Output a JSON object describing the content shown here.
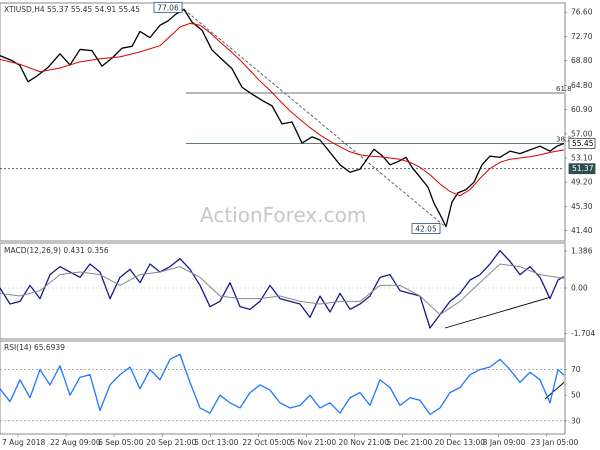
{
  "chart_data": [
    {
      "type": "line",
      "title": "XTIUSD,H4  55.37 55.45 54.91 55.45",
      "watermark": "ActionForex.com",
      "ylim": [
        40.2,
        77.6
      ],
      "y_ticks": [
        "76.60",
        "72.70",
        "68.80",
        "64.80",
        "60.90",
        "57.00",
        "53.10",
        "49.20",
        "45.30",
        "41.40"
      ],
      "x_ticks": [
        "7 Aug 2018",
        "22 Aug 09:00",
        "6 Sep 05:00",
        "20 Sep 21:00",
        "5 Oct 13:00",
        "22 Oct 05:00",
        "5 Nov 21:00",
        "20 Nov 21:00",
        "5 Dec 21:00",
        "20 Dec 13:00",
        "8 Jan 09:00",
        "23 Jan 05:00"
      ],
      "series": [
        {
          "color": "#000000",
          "x": [
            0,
            12,
            20,
            28,
            36,
            48,
            60,
            70,
            80,
            92,
            102,
            112,
            122,
            132,
            140,
            150,
            160,
            168,
            176,
            184,
            192,
            202,
            212,
            222,
            232,
            242,
            252,
            262,
            272,
            282,
            292,
            302,
            312,
            320,
            330,
            340,
            350,
            360,
            366,
            374,
            382,
            390,
            398,
            406,
            412,
            420,
            428,
            434,
            440,
            446,
            452,
            458,
            466,
            474,
            482,
            490,
            500,
            510,
            520,
            530,
            540,
            550,
            557,
            564
          ],
          "y": [
            69.6,
            68.8,
            68.0,
            65.4,
            66.2,
            67.7,
            69.9,
            68.1,
            70.6,
            70.4,
            67.9,
            69.2,
            70.8,
            71.1,
            73.5,
            72.5,
            74.5,
            75.2,
            76.3,
            77.06,
            75.0,
            73.7,
            70.5,
            69.0,
            67.5,
            64.5,
            63.4,
            62.4,
            61.5,
            58.6,
            58.9,
            55.5,
            56.5,
            56.0,
            54.0,
            52.0,
            50.8,
            51.3,
            52.7,
            54.5,
            53.5,
            52.0,
            52.5,
            53.2,
            51.6,
            50.0,
            48.4,
            45.8,
            44.0,
            42.05,
            46.0,
            47.5,
            48.0,
            49.2,
            52.0,
            53.4,
            53.2,
            54.2,
            53.8,
            54.4,
            55.0,
            54.2,
            55.0,
            55.45
          ]
        },
        {
          "color": "#dd0000",
          "x": [
            0,
            20,
            40,
            60,
            80,
            100,
            120,
            140,
            160,
            180,
            190,
            200,
            210,
            220,
            230,
            240,
            250,
            260,
            270,
            280,
            290,
            300,
            310,
            320,
            330,
            340,
            350,
            360,
            370,
            380,
            390,
            400,
            410,
            420,
            430,
            440,
            450,
            460,
            470,
            480,
            490,
            500,
            510,
            520,
            530,
            540,
            550,
            564
          ],
          "y": [
            69.0,
            68.2,
            67.0,
            67.6,
            68.6,
            69.1,
            69.4,
            70.2,
            71.2,
            74.2,
            74.8,
            74.5,
            73.3,
            71.8,
            70.4,
            68.9,
            67.2,
            65.5,
            64.0,
            62.3,
            60.7,
            59.3,
            58.0,
            56.8,
            55.8,
            54.9,
            54.1,
            53.6,
            53.4,
            53.3,
            53.1,
            52.9,
            52.4,
            51.6,
            50.4,
            48.9,
            47.7,
            47.0,
            48.0,
            49.8,
            51.4,
            52.4,
            52.9,
            53.1,
            53.3,
            53.6,
            54.0,
            54.4
          ]
        }
      ],
      "hlines": [
        {
          "value": 63.57,
          "label": "61.8",
          "color": "#2e4e4e"
        },
        {
          "value": 55.45,
          "label": "38.2",
          "color": "#2e4e4e"
        },
        {
          "value": 51.37,
          "label": "",
          "color": "#2e4e4e",
          "dotted": true
        }
      ],
      "trendlines": [
        {
          "x1": 184,
          "y1": 77.06,
          "x2": 445,
          "y2": 42.05,
          "dashed": true,
          "color": "#555555"
        }
      ],
      "value_labels": [
        {
          "text": "77.06",
          "x": 168,
          "value": 77.06
        },
        {
          "text": "42.05",
          "x": 426,
          "value": 42.05
        }
      ],
      "price_tags": [
        {
          "text": "55.45",
          "value": 55.45,
          "bg": "#ffffff",
          "fg": "#000000"
        },
        {
          "text": "51.37",
          "value": 51.37,
          "bg": "#2e4e4e",
          "fg": "#ffffff"
        }
      ]
    },
    {
      "type": "line",
      "title": "MACD(12,26,9) 0.431 0.356",
      "ylim": [
        -1.8,
        1.5
      ],
      "y_ticks": [
        "1.386",
        "0.00",
        "-1.704"
      ],
      "series": [
        {
          "color": "#1a1a8c",
          "x": [
            0,
            10,
            20,
            30,
            40,
            50,
            60,
            70,
            80,
            90,
            100,
            110,
            120,
            130,
            140,
            150,
            160,
            170,
            180,
            190,
            200,
            210,
            220,
            230,
            240,
            250,
            260,
            270,
            280,
            290,
            300,
            310,
            320,
            330,
            340,
            350,
            360,
            370,
            380,
            390,
            400,
            410,
            420,
            430,
            440,
            450,
            460,
            470,
            480,
            490,
            500,
            510,
            520,
            530,
            540,
            550,
            558,
            564
          ],
          "y": [
            0.0,
            -0.6,
            -0.5,
            0.1,
            -0.4,
            0.5,
            0.8,
            0.6,
            0.4,
            0.9,
            0.6,
            -0.4,
            0.4,
            0.7,
            0.2,
            0.9,
            0.6,
            0.8,
            1.1,
            0.7,
            0.1,
            -0.7,
            -0.5,
            0.2,
            -0.7,
            -0.8,
            -0.5,
            0.1,
            -0.4,
            -0.5,
            -0.6,
            -1.1,
            -0.3,
            -0.9,
            -0.2,
            -0.8,
            -0.6,
            -0.3,
            0.4,
            0.5,
            -0.1,
            -0.2,
            -0.3,
            -1.5,
            -1.0,
            -0.5,
            -0.2,
            0.3,
            0.5,
            0.9,
            1.4,
            1.0,
            0.5,
            0.8,
            0.4,
            -0.4,
            0.3,
            0.43
          ]
        },
        {
          "color": "#888888",
          "x": [
            0,
            20,
            40,
            60,
            80,
            100,
            120,
            140,
            160,
            180,
            200,
            220,
            240,
            260,
            280,
            300,
            320,
            340,
            360,
            380,
            400,
            420,
            440,
            460,
            480,
            500,
            520,
            540,
            564
          ],
          "y": [
            -0.2,
            -0.3,
            -0.1,
            0.5,
            0.6,
            0.5,
            0.1,
            0.5,
            0.6,
            0.8,
            0.4,
            -0.3,
            -0.4,
            -0.4,
            -0.3,
            -0.5,
            -0.6,
            -0.5,
            -0.5,
            0.1,
            0.1,
            -0.3,
            -1.0,
            -0.5,
            0.2,
            0.9,
            0.8,
            0.5,
            0.36
          ]
        }
      ],
      "trendlines": [
        {
          "x1": 445,
          "y1": -1.5,
          "x2": 550,
          "y2": -0.35,
          "dashed": false,
          "color": "#000000"
        }
      ],
      "zero_line": true
    },
    {
      "type": "line",
      "title": "RSI(14) 65.6939",
      "ylim": [
        22,
        90
      ],
      "y_ticks": [
        "70",
        "50",
        "30"
      ],
      "series": [
        {
          "color": "#1e78ff",
          "x": [
            0,
            10,
            20,
            30,
            40,
            50,
            60,
            70,
            80,
            90,
            100,
            110,
            120,
            130,
            140,
            150,
            160,
            170,
            180,
            190,
            200,
            210,
            220,
            230,
            240,
            250,
            260,
            270,
            280,
            290,
            300,
            310,
            320,
            330,
            340,
            350,
            360,
            370,
            380,
            390,
            400,
            410,
            420,
            430,
            440,
            450,
            460,
            470,
            480,
            490,
            500,
            510,
            520,
            530,
            540,
            550,
            558,
            564
          ],
          "y": [
            55,
            45,
            62,
            48,
            70,
            58,
            73,
            50,
            64,
            66,
            38,
            58,
            66,
            72,
            55,
            70,
            62,
            78,
            82,
            60,
            40,
            36,
            50,
            44,
            40,
            52,
            58,
            54,
            44,
            40,
            42,
            50,
            40,
            44,
            36,
            48,
            52,
            42,
            62,
            56,
            42,
            48,
            46,
            35,
            40,
            52,
            56,
            66,
            70,
            72,
            78,
            70,
            60,
            68,
            62,
            44,
            70,
            65.69
          ]
        }
      ],
      "trendlines": [
        {
          "x1": 545,
          "y1": 47,
          "x2": 564,
          "y2": 60,
          "dashed": false,
          "color": "#000000"
        }
      ],
      "hlines": [
        {
          "value": 70,
          "label": "",
          "color": "#999999",
          "dotted": true
        },
        {
          "value": 30,
          "label": "",
          "color": "#999999",
          "dotted": true
        }
      ]
    }
  ]
}
